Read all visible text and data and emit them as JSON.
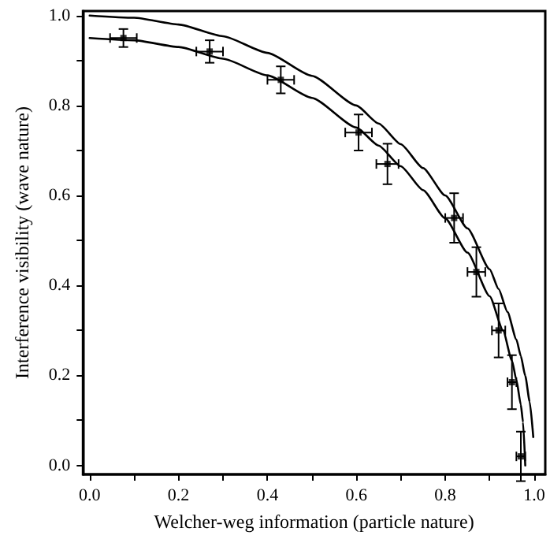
{
  "chart_data": {
    "type": "scatter",
    "xlabel": "Welcher-weg information (particle nature)",
    "ylabel": "Interference visibility (wave nature)",
    "xlim": [
      -0.015,
      1.025
    ],
    "ylim": [
      -0.02,
      1.01
    ],
    "xticks": [
      {
        "value": 0,
        "label": "0.0"
      },
      {
        "value": 0.1,
        "label": null
      },
      {
        "value": 0.2,
        "label": "0.2"
      },
      {
        "value": 0.3,
        "label": null
      },
      {
        "value": 0.4,
        "label": "0.4"
      },
      {
        "value": 0.5,
        "label": null
      },
      {
        "value": 0.6,
        "label": "0.6"
      },
      {
        "value": 0.7,
        "label": null
      },
      {
        "value": 0.8,
        "label": "0.8"
      },
      {
        "value": 0.9,
        "label": null
      },
      {
        "value": 1.0,
        "label": "1.0"
      }
    ],
    "yticks": [
      {
        "value": 0,
        "label": "0.0"
      },
      {
        "value": 0.1,
        "label": null
      },
      {
        "value": 0.2,
        "label": "0.2"
      },
      {
        "value": 0.3,
        "label": null
      },
      {
        "value": 0.4,
        "label": "0.4"
      },
      {
        "value": 0.5,
        "label": null
      },
      {
        "value": 0.6,
        "label": "0.6"
      },
      {
        "value": 0.7,
        "label": null
      },
      {
        "value": 0.8,
        "label": "0.8"
      },
      {
        "value": 0.9,
        "label": null
      },
      {
        "value": 1.0,
        "label": "1.0"
      }
    ],
    "marker": "square",
    "series": [
      {
        "type": "line",
        "color": "#000000",
        "marker": "none",
        "line_style": "solid",
        "x": [
          0,
          0.1,
          0.2,
          0.3,
          0.4,
          0.5,
          0.6,
          0.65,
          0.7,
          0.75,
          0.8,
          0.85,
          0.9,
          0.92,
          0.94,
          0.96,
          0.97,
          0.98,
          0.99,
          0.998
        ],
        "values": [
          1.0,
          0.995,
          0.98,
          0.954,
          0.917,
          0.866,
          0.8,
          0.76,
          0.714,
          0.661,
          0.6,
          0.527,
          0.436,
          0.392,
          0.341,
          0.28,
          0.243,
          0.199,
          0.141,
          0.063
        ]
      },
      {
        "type": "line",
        "color": "#000000",
        "marker": "none",
        "line_style": "solid",
        "x": [
          0,
          0.1,
          0.2,
          0.3,
          0.4,
          0.5,
          0.6,
          0.65,
          0.7,
          0.75,
          0.8,
          0.85,
          0.9,
          0.93,
          0.95,
          0.96,
          0.97,
          0.975,
          0.98
        ],
        "values": [
          0.95,
          0.945,
          0.93,
          0.904,
          0.867,
          0.817,
          0.751,
          0.711,
          0.665,
          0.612,
          0.549,
          0.473,
          0.376,
          0.3,
          0.233,
          0.19,
          0.135,
          0.096,
          0.0
        ]
      },
      {
        "color": "#000000",
        "x": [
          0.076,
          0.27,
          0.43,
          0.605,
          0.67,
          0.82,
          0.87,
          0.92,
          0.95,
          0.97
        ],
        "values": [
          0.95,
          0.92,
          0.857,
          0.74,
          0.67,
          0.55,
          0.43,
          0.3,
          0.185,
          0.02
        ],
        "errors": [
          0.02,
          0.025,
          0.03,
          0.04,
          0.045,
          0.055,
          0.055,
          0.06,
          0.06,
          0.055
        ],
        "xerrors": [
          0.03,
          0.03,
          0.03,
          0.03,
          0.025,
          0.02,
          0.02,
          0.015,
          0.01,
          0.01
        ]
      }
    ]
  }
}
